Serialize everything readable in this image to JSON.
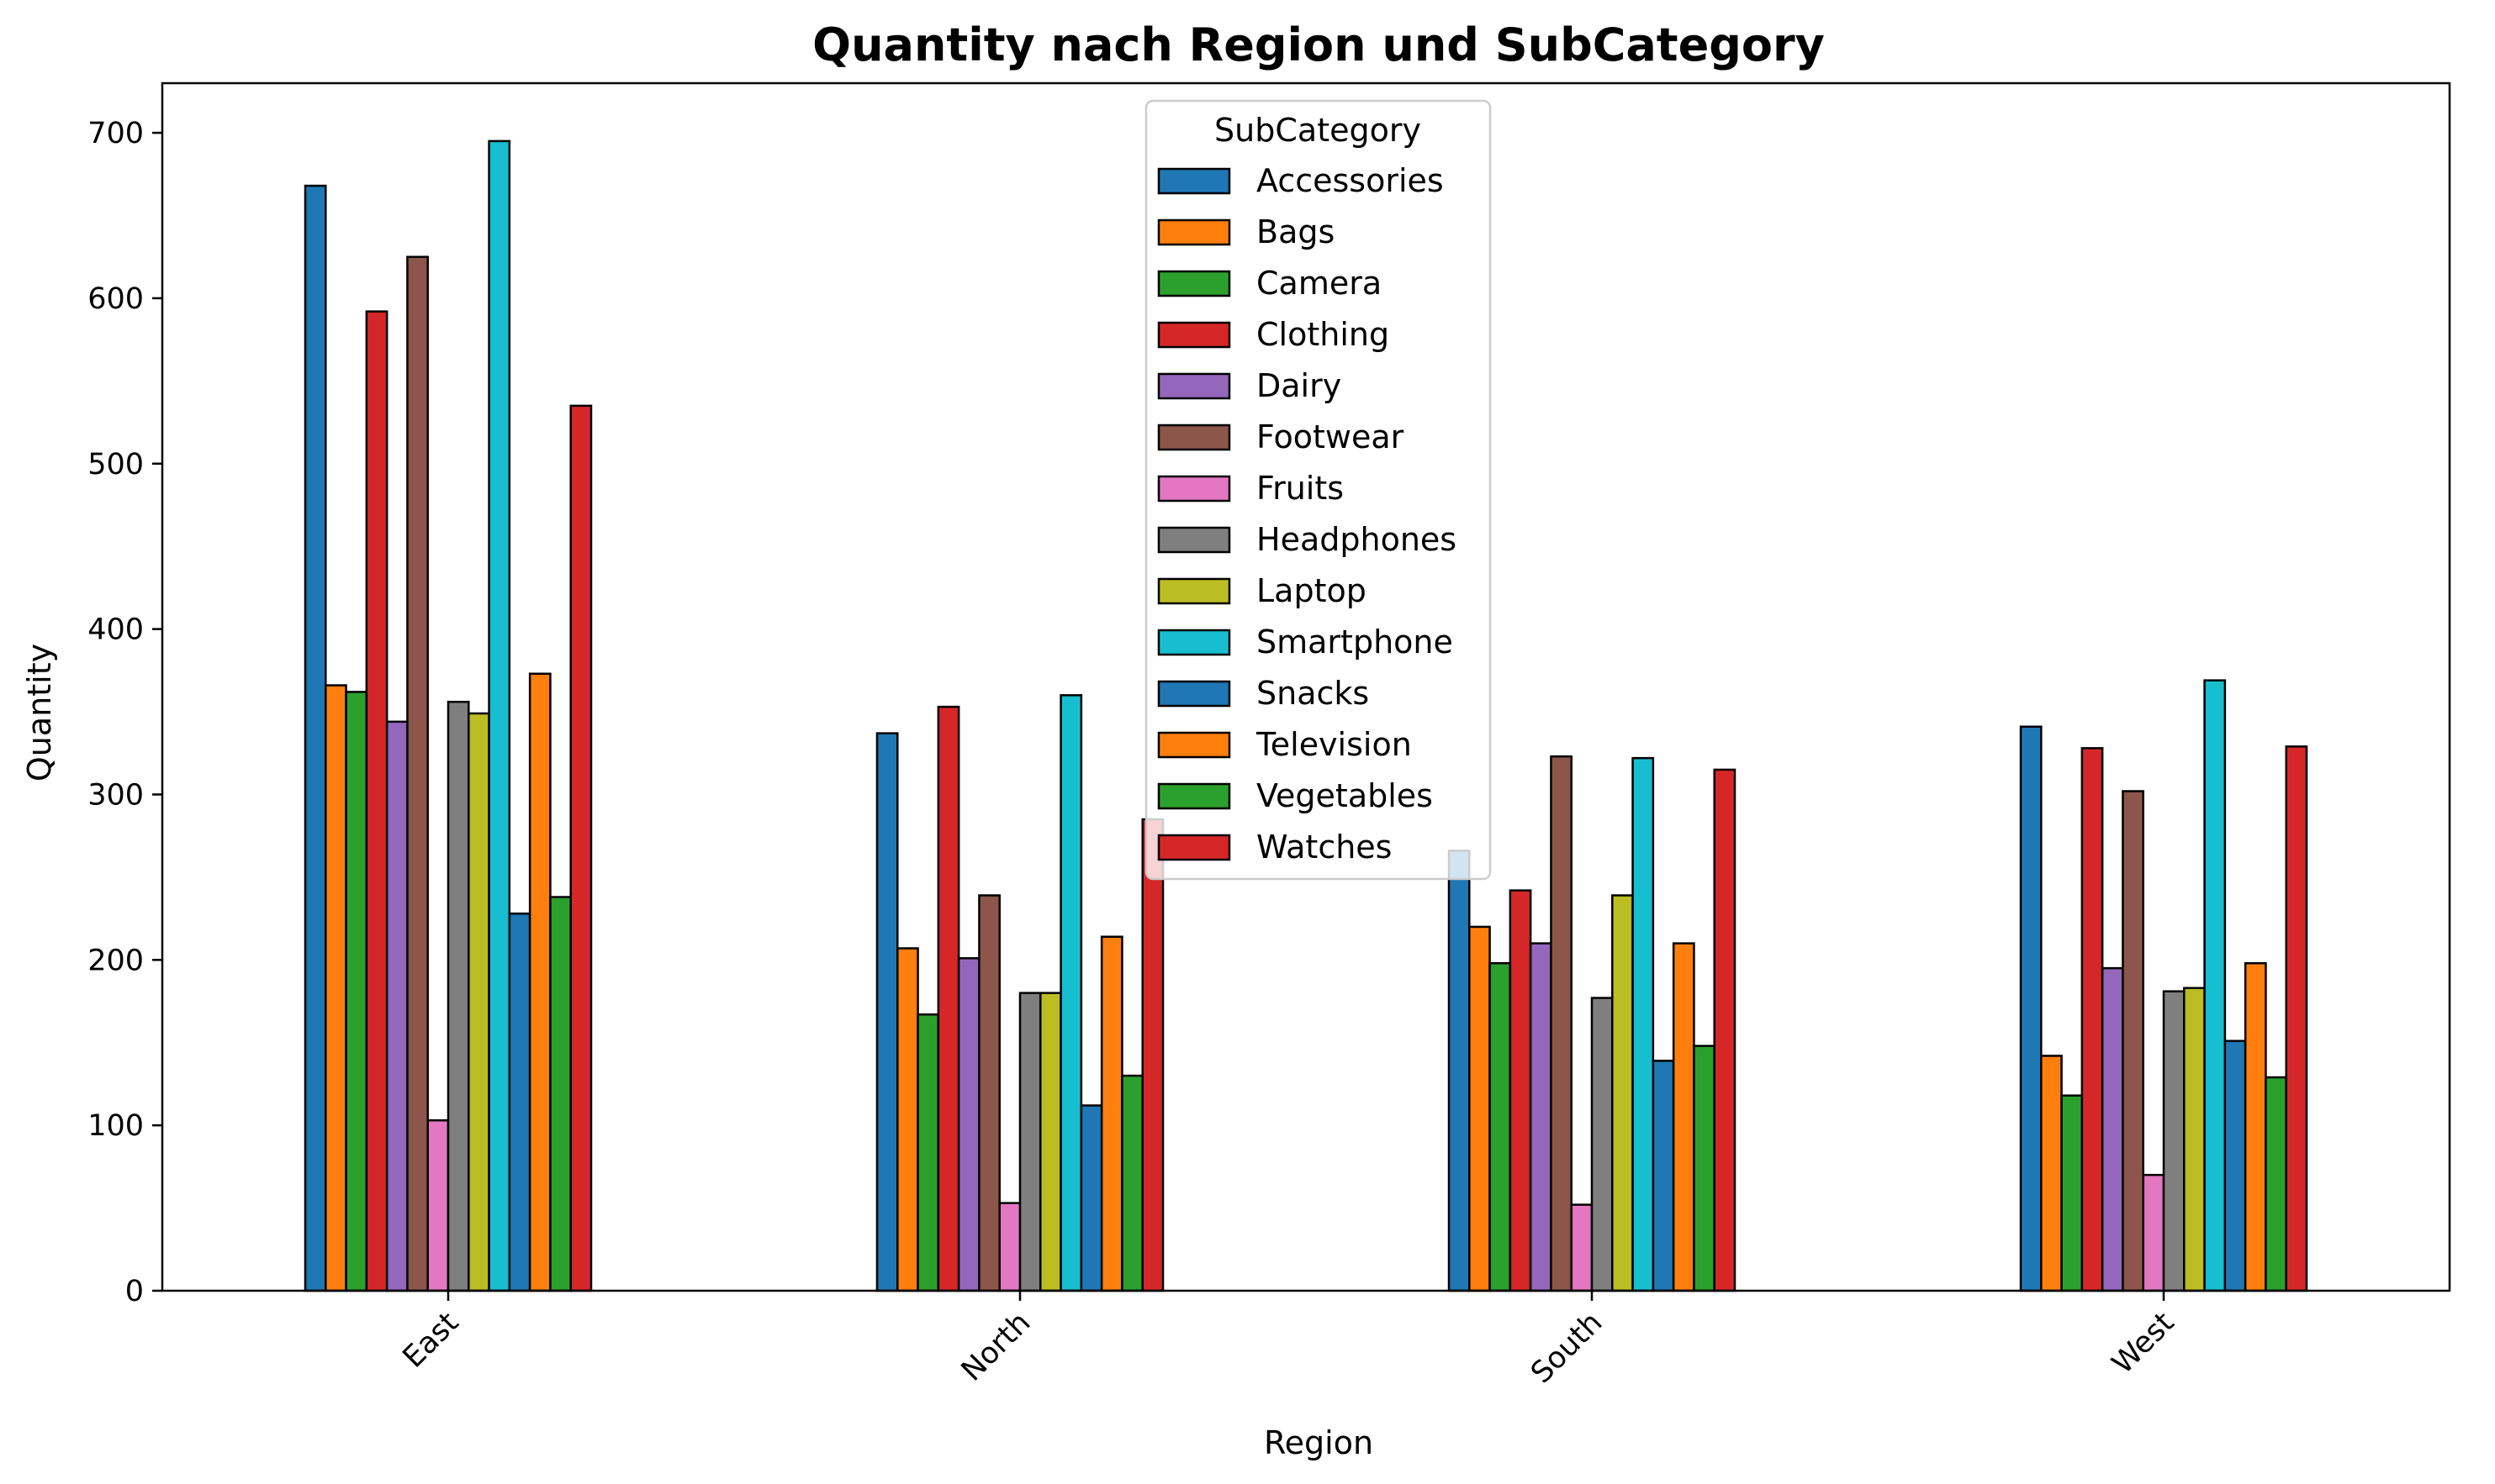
{
  "chart_data": {
    "type": "bar",
    "title": "Quantity nach Region und SubCategory",
    "xlabel": "Region",
    "ylabel": "Quantity",
    "categories": [
      "East",
      "North",
      "South",
      "West"
    ],
    "ylim": [
      0,
      730
    ],
    "yticks": [
      0,
      100,
      200,
      300,
      400,
      500,
      600,
      700
    ],
    "grid": false,
    "legend": {
      "title": "SubCategory",
      "placement": "upper-center"
    },
    "series": [
      {
        "name": "Accessories",
        "color": "#1f77b4",
        "values": [
          668,
          337,
          266,
          341
        ]
      },
      {
        "name": "Bags",
        "color": "#ff7f0e",
        "values": [
          366,
          207,
          220,
          142
        ]
      },
      {
        "name": "Camera",
        "color": "#2ca02c",
        "values": [
          362,
          167,
          198,
          118
        ]
      },
      {
        "name": "Clothing",
        "color": "#d62728",
        "values": [
          592,
          353,
          242,
          328
        ]
      },
      {
        "name": "Dairy",
        "color": "#9467bd",
        "values": [
          344,
          201,
          210,
          195
        ]
      },
      {
        "name": "Footwear",
        "color": "#8c564b",
        "values": [
          625,
          239,
          323,
          302
        ]
      },
      {
        "name": "Fruits",
        "color": "#e377c2",
        "values": [
          103,
          53,
          52,
          70
        ]
      },
      {
        "name": "Headphones",
        "color": "#7f7f7f",
        "values": [
          356,
          180,
          177,
          181
        ]
      },
      {
        "name": "Laptop",
        "color": "#bcbd22",
        "values": [
          349,
          180,
          239,
          183
        ]
      },
      {
        "name": "Smartphone",
        "color": "#17becf",
        "values": [
          695,
          360,
          322,
          369
        ]
      },
      {
        "name": "Snacks",
        "color": "#1f77b4",
        "values": [
          228,
          112,
          139,
          151
        ]
      },
      {
        "name": "Television",
        "color": "#ff7f0e",
        "values": [
          373,
          214,
          210,
          198
        ]
      },
      {
        "name": "Vegetables",
        "color": "#2ca02c",
        "values": [
          238,
          130,
          148,
          129
        ]
      },
      {
        "name": "Watches",
        "color": "#d62728",
        "values": [
          535,
          285,
          315,
          329
        ]
      }
    ]
  }
}
